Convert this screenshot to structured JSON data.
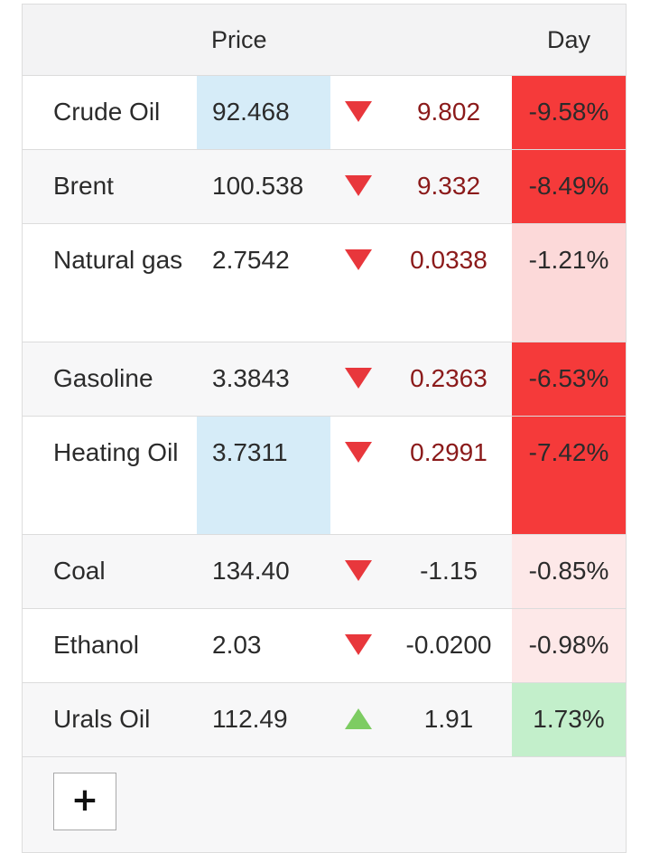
{
  "header": {
    "price_label": "Price",
    "day_label": "Day"
  },
  "rows": [
    {
      "name": "Crude Oil",
      "price": "92.468",
      "direction": "down",
      "change": "9.802",
      "pct": "-9.58%",
      "pct_bg": "#f53a3a",
      "price_highlight": true,
      "change_color": "#8b1a1a"
    },
    {
      "name": "Brent",
      "price": "100.538",
      "direction": "down",
      "change": "9.332",
      "pct": "-8.49%",
      "pct_bg": "#f53a3a",
      "price_highlight": false,
      "change_color": "#8b1a1a"
    },
    {
      "name": "Natural gas",
      "price": "2.7542",
      "direction": "down",
      "change": "0.0338",
      "pct": "-1.21%",
      "pct_bg": "#fcd9d9",
      "price_highlight": false,
      "change_color": "#8b1a1a"
    },
    {
      "name": "Gasoline",
      "price": "3.3843",
      "direction": "down",
      "change": "0.2363",
      "pct": "-6.53%",
      "pct_bg": "#f53a3a",
      "price_highlight": false,
      "change_color": "#8b1a1a"
    },
    {
      "name": "Heating Oil",
      "price": "3.7311",
      "direction": "down",
      "change": "0.2991",
      "pct": "-7.42%",
      "pct_bg": "#f53a3a",
      "price_highlight": true,
      "change_color": "#8b1a1a"
    },
    {
      "name": "Coal",
      "price": "134.40",
      "direction": "down",
      "change": "-1.15",
      "pct": "-0.85%",
      "pct_bg": "#fde8e8",
      "price_highlight": false,
      "change_color": "#2b2b2b"
    },
    {
      "name": "Ethanol",
      "price": "2.03",
      "direction": "down",
      "change": "-0.0200",
      "pct": "-0.98%",
      "pct_bg": "#fde8e8",
      "price_highlight": false,
      "change_color": "#2b2b2b"
    },
    {
      "name": "Urals Oil",
      "price": "112.49",
      "direction": "up",
      "change": "1.91",
      "pct": "1.73%",
      "pct_bg": "#c3efcb",
      "price_highlight": false,
      "change_color": "#2b2b2b"
    }
  ],
  "add_button": {
    "label": "+"
  },
  "icons": {
    "down": "triangle-down-icon",
    "up": "triangle-up-icon"
  }
}
